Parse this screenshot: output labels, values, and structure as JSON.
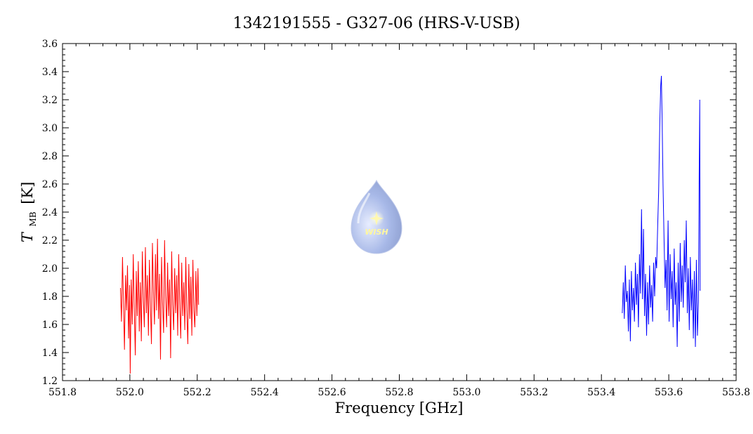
{
  "chart_data": {
    "type": "line",
    "title": "1342191555 - G327-06 (HRS-V-USB)",
    "xlabel": "Frequency [GHz]",
    "ylabel": {
      "symbol": "T",
      "subscript": "MB",
      "unit": "[K]"
    },
    "xlim": [
      551.8,
      553.8
    ],
    "ylim": [
      1.2,
      3.6
    ],
    "xticks": [
      "551.8",
      "552.0",
      "552.2",
      "552.4",
      "552.6",
      "552.8",
      "553.0",
      "553.2",
      "553.4",
      "553.6",
      "553.8"
    ],
    "yticks": [
      "1.2",
      "1.4",
      "1.6",
      "1.8",
      "2.0",
      "2.2",
      "2.4",
      "2.6",
      "2.8",
      "3.0",
      "3.2",
      "3.4",
      "3.6"
    ],
    "grid": false,
    "legend": "none",
    "logo": {
      "text": "WISH"
    },
    "series": [
      {
        "color": "#ff0000",
        "points": [
          [
            551.972,
            1.86
          ],
          [
            551.975,
            1.62
          ],
          [
            551.978,
            2.08
          ],
          [
            551.981,
            1.75
          ],
          [
            551.984,
            1.42
          ],
          [
            551.987,
            1.95
          ],
          [
            551.99,
            1.7
          ],
          [
            551.993,
            2.02
          ],
          [
            551.996,
            1.5
          ],
          [
            551.999,
            1.88
          ],
          [
            552.001,
            1.25
          ],
          [
            552.004,
            1.92
          ],
          [
            552.007,
            1.6
          ],
          [
            552.01,
            2.1
          ],
          [
            552.013,
            1.72
          ],
          [
            552.016,
            1.38
          ],
          [
            552.019,
            1.98
          ],
          [
            552.022,
            1.66
          ],
          [
            552.025,
            2.05
          ],
          [
            552.028,
            1.55
          ],
          [
            552.031,
            1.9
          ],
          [
            552.034,
            1.48
          ],
          [
            552.037,
            2.12
          ],
          [
            552.04,
            1.78
          ],
          [
            552.043,
            1.58
          ],
          [
            552.046,
            2.15
          ],
          [
            552.049,
            1.68
          ],
          [
            552.052,
            1.95
          ],
          [
            552.055,
            1.52
          ],
          [
            552.058,
            2.06
          ],
          [
            552.061,
            1.74
          ],
          [
            552.064,
            1.46
          ],
          [
            552.067,
            2.18
          ],
          [
            552.07,
            1.82
          ],
          [
            552.073,
            1.6
          ],
          [
            552.076,
            2.1
          ],
          [
            552.079,
            1.7
          ],
          [
            552.082,
            2.21
          ],
          [
            552.085,
            1.64
          ],
          [
            552.088,
            1.96
          ],
          [
            552.091,
            1.35
          ],
          [
            552.094,
            2.08
          ],
          [
            552.097,
            1.76
          ],
          [
            552.1,
            1.54
          ],
          [
            552.103,
            2.2
          ],
          [
            552.106,
            1.8
          ],
          [
            552.109,
            1.58
          ],
          [
            552.112,
            2.04
          ],
          [
            552.115,
            1.66
          ],
          [
            552.118,
            1.92
          ],
          [
            552.121,
            1.36
          ],
          [
            552.124,
            2.12
          ],
          [
            552.127,
            1.74
          ],
          [
            552.13,
            1.56
          ],
          [
            552.133,
            2.0
          ],
          [
            552.136,
            1.68
          ],
          [
            552.139,
            1.95
          ],
          [
            552.142,
            1.52
          ],
          [
            552.145,
            2.1
          ],
          [
            552.148,
            1.72
          ],
          [
            552.151,
            1.5
          ],
          [
            552.154,
            2.04
          ],
          [
            552.157,
            1.66
          ],
          [
            552.16,
            1.9
          ],
          [
            552.163,
            1.56
          ],
          [
            552.166,
            2.08
          ],
          [
            552.169,
            1.7
          ],
          [
            552.172,
            1.46
          ],
          [
            552.175,
            2.03
          ],
          [
            552.178,
            1.64
          ],
          [
            552.181,
            1.94
          ],
          [
            552.184,
            1.52
          ],
          [
            552.187,
            2.06
          ],
          [
            552.19,
            1.7
          ],
          [
            552.193,
            1.58
          ],
          [
            552.196,
            1.98
          ],
          [
            552.199,
            1.66
          ],
          [
            552.202,
            2.0
          ],
          [
            552.204,
            1.74
          ]
        ]
      },
      {
        "color": "#0000ff",
        "points": [
          [
            553.462,
            1.68
          ],
          [
            553.465,
            1.9
          ],
          [
            553.468,
            1.64
          ],
          [
            553.471,
            2.02
          ],
          [
            553.474,
            1.76
          ],
          [
            553.477,
            1.84
          ],
          [
            553.48,
            1.55
          ],
          [
            553.483,
            1.92
          ],
          [
            553.486,
            1.48
          ],
          [
            553.489,
            1.98
          ],
          [
            553.492,
            1.7
          ],
          [
            553.495,
            1.86
          ],
          [
            553.498,
            1.62
          ],
          [
            553.501,
            2.04
          ],
          [
            553.504,
            1.74
          ],
          [
            553.507,
            1.96
          ],
          [
            553.51,
            1.58
          ],
          [
            553.513,
            2.1
          ],
          [
            553.516,
            1.82
          ],
          [
            553.519,
            2.42
          ],
          [
            553.522,
            1.78
          ],
          [
            553.525,
            2.28
          ],
          [
            553.528,
            1.66
          ],
          [
            553.531,
            1.96
          ],
          [
            553.534,
            1.52
          ],
          [
            553.537,
            1.9
          ],
          [
            553.54,
            1.6
          ],
          [
            553.543,
            2.02
          ],
          [
            553.546,
            1.72
          ],
          [
            553.549,
            1.88
          ],
          [
            553.552,
            1.62
          ],
          [
            553.555,
            2.04
          ],
          [
            553.558,
            1.8
          ],
          [
            553.561,
            2.08
          ],
          [
            553.564,
            2.0
          ],
          [
            553.567,
            2.3
          ],
          [
            553.57,
            2.55
          ],
          [
            553.573,
            3.0
          ],
          [
            553.576,
            3.3
          ],
          [
            553.578,
            3.37
          ],
          [
            553.58,
            3.1
          ],
          [
            553.583,
            2.6
          ],
          [
            553.586,
            2.2
          ],
          [
            553.589,
            1.86
          ],
          [
            553.592,
            2.06
          ],
          [
            553.595,
            1.7
          ],
          [
            553.598,
            2.34
          ],
          [
            553.601,
            1.62
          ],
          [
            553.604,
            2.1
          ],
          [
            553.607,
            1.78
          ],
          [
            553.61,
            1.98
          ],
          [
            553.613,
            1.58
          ],
          [
            553.616,
            2.14
          ],
          [
            553.619,
            1.74
          ],
          [
            553.622,
            1.9
          ],
          [
            553.625,
            1.44
          ],
          [
            553.628,
            2.04
          ],
          [
            553.631,
            1.62
          ],
          [
            553.634,
            2.18
          ],
          [
            553.637,
            1.76
          ],
          [
            553.64,
            2.02
          ],
          [
            553.643,
            1.72
          ],
          [
            553.646,
            2.2
          ],
          [
            553.649,
            1.9
          ],
          [
            553.652,
            2.34
          ],
          [
            553.655,
            1.68
          ],
          [
            553.658,
            2.0
          ],
          [
            553.661,
            1.56
          ],
          [
            553.664,
            2.08
          ],
          [
            553.667,
            1.7
          ],
          [
            553.67,
            1.92
          ],
          [
            553.673,
            1.5
          ],
          [
            553.676,
            1.98
          ],
          [
            553.679,
            1.44
          ],
          [
            553.682,
            2.06
          ],
          [
            553.685,
            1.52
          ],
          [
            553.688,
            1.76
          ],
          [
            553.69,
            2.6
          ],
          [
            553.692,
            3.2
          ],
          [
            553.693,
            1.84
          ]
        ]
      }
    ]
  }
}
